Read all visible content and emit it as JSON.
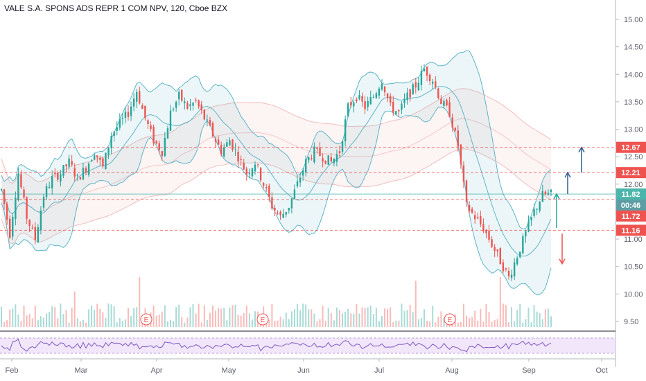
{
  "chart_data": {
    "type": "candlestick",
    "title": "VALE S.A. SPONS ADS REPR 1 COM NPV, 120, Cboe BZX",
    "x_tick_labels": [
      "Feb",
      "Mar",
      "Apr",
      "May",
      "Jun",
      "Jul",
      "Aug",
      "Sep",
      "Oct"
    ],
    "y_tick_labels": [
      "15.00",
      "14.50",
      "14.00",
      "13.50",
      "13.00",
      "12.50",
      "12.00",
      "11.50",
      "11.00",
      "10.50",
      "10.00",
      "9.50"
    ],
    "ylim": [
      9.3,
      15.1
    ],
    "grid": false,
    "price_series": {
      "name": "VALE",
      "x": [
        "Jan 29",
        "Feb 1",
        "Feb 4",
        "Feb 8",
        "Feb 10",
        "Feb 12",
        "Feb 16",
        "Feb 19",
        "Feb 22",
        "Feb 25",
        "Mar 1",
        "Mar 4",
        "Mar 8",
        "Mar 11",
        "Mar 15",
        "Mar 18",
        "Mar 22",
        "Mar 25",
        "Mar 29",
        "Apr 1",
        "Apr 5",
        "Apr 8",
        "Apr 12",
        "Apr 15",
        "Apr 19",
        "Apr 22",
        "Apr 26",
        "Apr 29",
        "May 3",
        "May 6",
        "May 10",
        "May 13",
        "May 17",
        "May 20",
        "May 24",
        "May 27",
        "Jun 1",
        "Jun 4",
        "Jun 8",
        "Jun 11",
        "Jun 15",
        "Jun 18",
        "Jun 22",
        "Jun 25",
        "Jun 29",
        "Jul 2",
        "Jul 6",
        "Jul 9",
        "Jul 13",
        "Jul 16",
        "Jul 20",
        "Jul 23",
        "Jul 27",
        "Jul 30",
        "Aug 2",
        "Aug 5",
        "Aug 9",
        "Aug 12",
        "Aug 16",
        "Aug 19",
        "Aug 23",
        "Aug 26",
        "Aug 30",
        "Sep 2",
        "Sep 7",
        "Sep 10"
      ],
      "close": [
        11.9,
        11.1,
        12.2,
        11.4,
        11.0,
        11.8,
        12.1,
        12.2,
        12.4,
        12.1,
        12.3,
        12.6,
        12.3,
        12.9,
        13.1,
        13.3,
        13.7,
        13.2,
        12.8,
        12.6,
        13.3,
        13.6,
        13.4,
        13.5,
        13.2,
        12.9,
        12.6,
        12.8,
        12.5,
        12.2,
        12.4,
        12.0,
        11.6,
        11.4,
        11.6,
        12.0,
        12.4,
        12.6,
        12.5,
        12.4,
        12.6,
        13.4,
        13.6,
        13.4,
        13.6,
        13.9,
        13.4,
        13.3,
        13.6,
        13.8,
        14.1,
        13.9,
        13.5,
        13.3,
        12.7,
        11.6,
        11.4,
        11.2,
        10.9,
        10.6,
        10.3,
        10.7,
        11.1,
        11.5,
        11.8,
        11.82
      ]
    },
    "annotations": {
      "price_labels": [
        "12.67",
        "12.21",
        "11.82",
        "00:46",
        "11.72",
        "11.16"
      ],
      "earnings_markers": [
        "E",
        "E",
        "E"
      ]
    }
  },
  "colors": {
    "up": "#26a69a",
    "down": "#ef5350",
    "bollinger": "#5fb4c7",
    "envelope": "#e57373",
    "blue_arrow": "#2e5f8f",
    "last_price_tag": "#4db6ac",
    "countdown_tag": "#5d9ea4",
    "red_tag": "#ef5350",
    "rsi_band": "#ead5f7",
    "rsi_line": "#7e57c2"
  }
}
